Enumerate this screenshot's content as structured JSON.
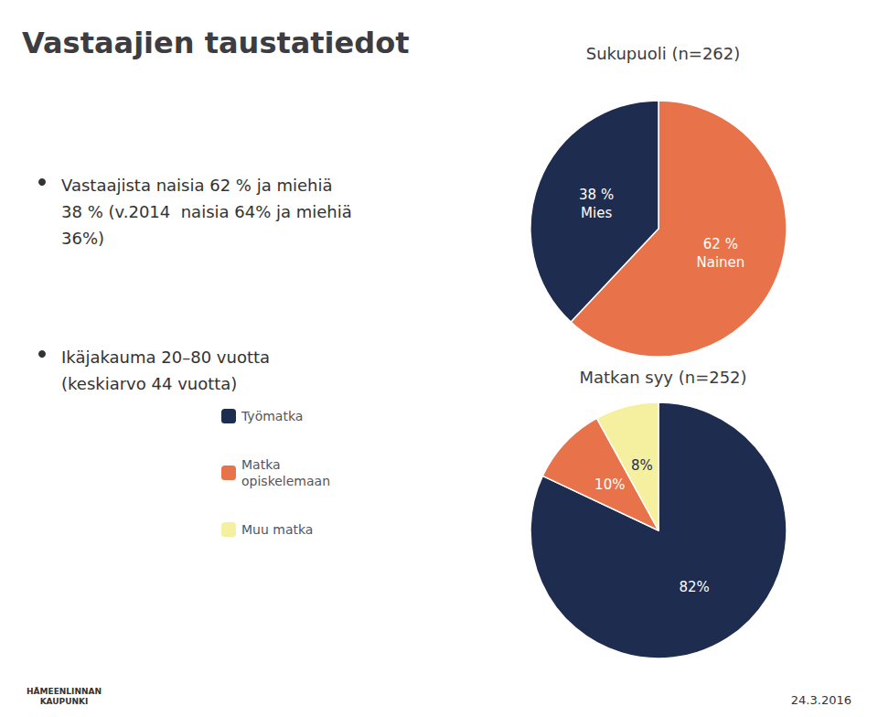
{
  "title": "Vastaajien taustatiedot",
  "annotations": [
    "Vastaajista naisia 62 % ja miehiä\n38 % (v.2014  naisia 64% ja miehiä\n36%)",
    "Ikäjakauma 20–80 vuotta\n(keskiarvo 44 vuotta)",
    "24.3.2016",
    "HÄMEENLINNAN\nKAUPUNKI"
  ],
  "chart_data": [
    {
      "type": "pie",
      "title": "Sukupuoli (n=262)",
      "categories": [
        "Nainen",
        "Mies"
      ],
      "values": [
        62,
        38
      ],
      "value_labels": [
        "62 %\nNainen",
        "38 %\nMies"
      ],
      "colors": [
        "#e8734a",
        "#1e2d4f"
      ],
      "data_labels": true
    },
    {
      "type": "pie",
      "title": "Matkan syy (n=252)",
      "categories": [
        "Työmatka",
        "Matka\nopiskelemaan",
        "Muu matka"
      ],
      "values": [
        82,
        10,
        8
      ],
      "value_labels": [
        "82%",
        "10%",
        "8%"
      ],
      "colors": [
        "#1e2d4f",
        "#e8734a",
        "#f5f0a0"
      ],
      "data_labels": true,
      "legend": "left"
    }
  ]
}
